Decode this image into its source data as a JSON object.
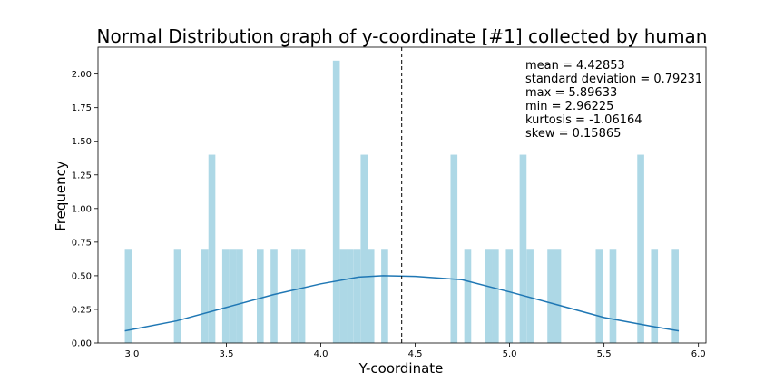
{
  "chart_data": {
    "type": "bar",
    "title": "Normal Distribution graph of y-coordinate [#1] collected by human",
    "xlabel": "Y-coordinate",
    "ylabel": "Frequency",
    "xlim": [
      2.82,
      6.04
    ],
    "ylim": [
      0,
      2.2
    ],
    "x_ticks": [
      "3.0",
      "3.5",
      "4.0",
      "4.5",
      "5.0",
      "5.5",
      "6.0"
    ],
    "y_ticks": [
      "0.00",
      "0.25",
      "0.50",
      "0.75",
      "1.00",
      "1.25",
      "1.50",
      "1.75",
      "2.00"
    ],
    "bar_color": "#add8e6",
    "line_color": "#1f77b4",
    "bin_width": 0.0366,
    "histogram": [
      {
        "x": 2.962,
        "value": 0.7
      },
      {
        "x": 3.222,
        "value": 0.7
      },
      {
        "x": 3.368,
        "value": 0.7
      },
      {
        "x": 3.405,
        "value": 1.4
      },
      {
        "x": 3.478,
        "value": 0.7
      },
      {
        "x": 3.515,
        "value": 0.7
      },
      {
        "x": 3.551,
        "value": 0.7
      },
      {
        "x": 3.661,
        "value": 0.7
      },
      {
        "x": 3.734,
        "value": 0.7
      },
      {
        "x": 3.844,
        "value": 0.7
      },
      {
        "x": 3.881,
        "value": 0.7
      },
      {
        "x": 4.064,
        "value": 2.1
      },
      {
        "x": 4.101,
        "value": 0.7
      },
      {
        "x": 4.137,
        "value": 0.7
      },
      {
        "x": 4.174,
        "value": 0.7
      },
      {
        "x": 4.211,
        "value": 1.4
      },
      {
        "x": 4.247,
        "value": 0.7
      },
      {
        "x": 4.32,
        "value": 0.7
      },
      {
        "x": 4.687,
        "value": 1.4
      },
      {
        "x": 4.76,
        "value": 0.7
      },
      {
        "x": 4.87,
        "value": 0.7
      },
      {
        "x": 4.906,
        "value": 0.7
      },
      {
        "x": 4.98,
        "value": 0.7
      },
      {
        "x": 5.053,
        "value": 1.4
      },
      {
        "x": 5.09,
        "value": 0.7
      },
      {
        "x": 5.2,
        "value": 0.7
      },
      {
        "x": 5.236,
        "value": 0.7
      },
      {
        "x": 5.456,
        "value": 0.7
      },
      {
        "x": 5.529,
        "value": 0.7
      },
      {
        "x": 5.676,
        "value": 1.4
      },
      {
        "x": 5.749,
        "value": 0.7
      },
      {
        "x": 5.859,
        "value": 0.7
      }
    ],
    "pdf_line": {
      "x": [
        2.962,
        3.237,
        3.5,
        3.75,
        4.0,
        4.2,
        4.33,
        4.5,
        4.75,
        5.0,
        5.25,
        5.5,
        5.75,
        5.896
      ],
      "y": [
        0.09,
        0.165,
        0.265,
        0.36,
        0.44,
        0.49,
        0.5,
        0.495,
        0.47,
        0.38,
        0.285,
        0.19,
        0.125,
        0.09
      ]
    },
    "mean_line_x": 4.42853,
    "stats": [
      "mean = 4.42853",
      "standard deviation = 0.79231",
      "max = 5.89633",
      "min = 2.96225",
      "kurtosis = -1.06164",
      "skew = 0.15865"
    ]
  }
}
